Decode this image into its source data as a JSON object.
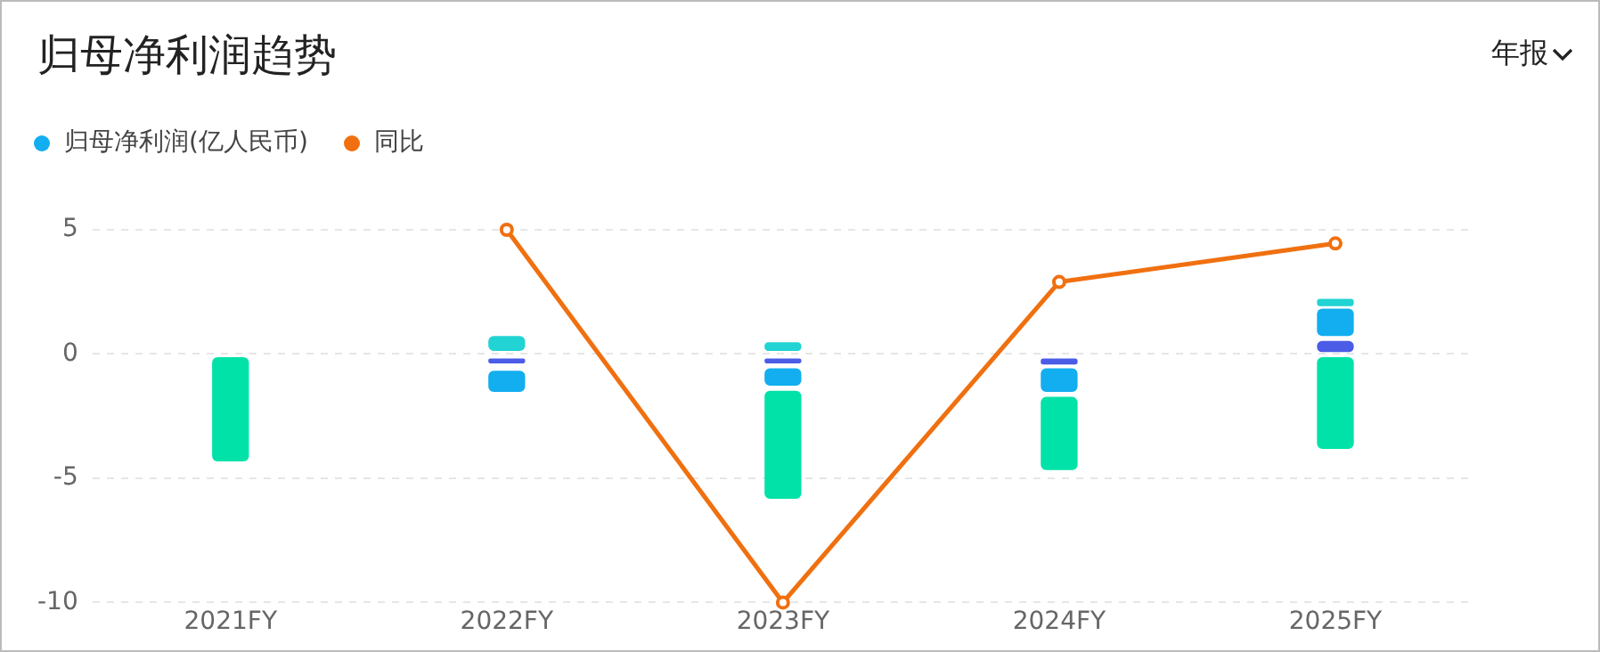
{
  "chart_data": {
    "type": "bar",
    "title": "归母净利润趋势",
    "annotations": [
      "年报"
    ],
    "categories": [
      "2021FY",
      "2022FY",
      "2023FY",
      "2024FY",
      "2025FY"
    ],
    "series": [
      {
        "name": "归母净利润(亿人民币)",
        "color": "#12aef0",
        "base": [
          null,
          -1.5,
          -1.25,
          -1.5,
          0.75
        ],
        "values": [
          null,
          0.8,
          0.65,
          0.9,
          1.05
        ]
      },
      {
        "color": "#22d3d3",
        "base": [
          null,
          0.15,
          0.15,
          null,
          1.95
        ],
        "values": [
          null,
          0.55,
          0.3,
          null,
          0.25
        ]
      },
      {
        "color": "#4b5ce6",
        "base": [
          null,
          -0.35,
          -0.35,
          -0.4,
          0.1
        ],
        "values": [
          null,
          0.15,
          0.15,
          0.2,
          0.4
        ]
      },
      {
        "color": "#00e2a8",
        "base": [
          -4.3,
          null,
          -5.8,
          -4.65,
          -3.8
        ],
        "values": [
          4.15,
          null,
          4.3,
          2.9,
          3.65
        ]
      },
      {
        "type": "line",
        "name": "同比",
        "color": "#f07010",
        "values": [
          null,
          5,
          -10,
          2.9,
          4.45
        ]
      }
    ],
    "ylim": [
      -10,
      5
    ],
    "yticks": [
      5,
      0,
      -5,
      -10
    ],
    "grid": "y",
    "legend": "top left",
    "marker": "circle"
  }
}
